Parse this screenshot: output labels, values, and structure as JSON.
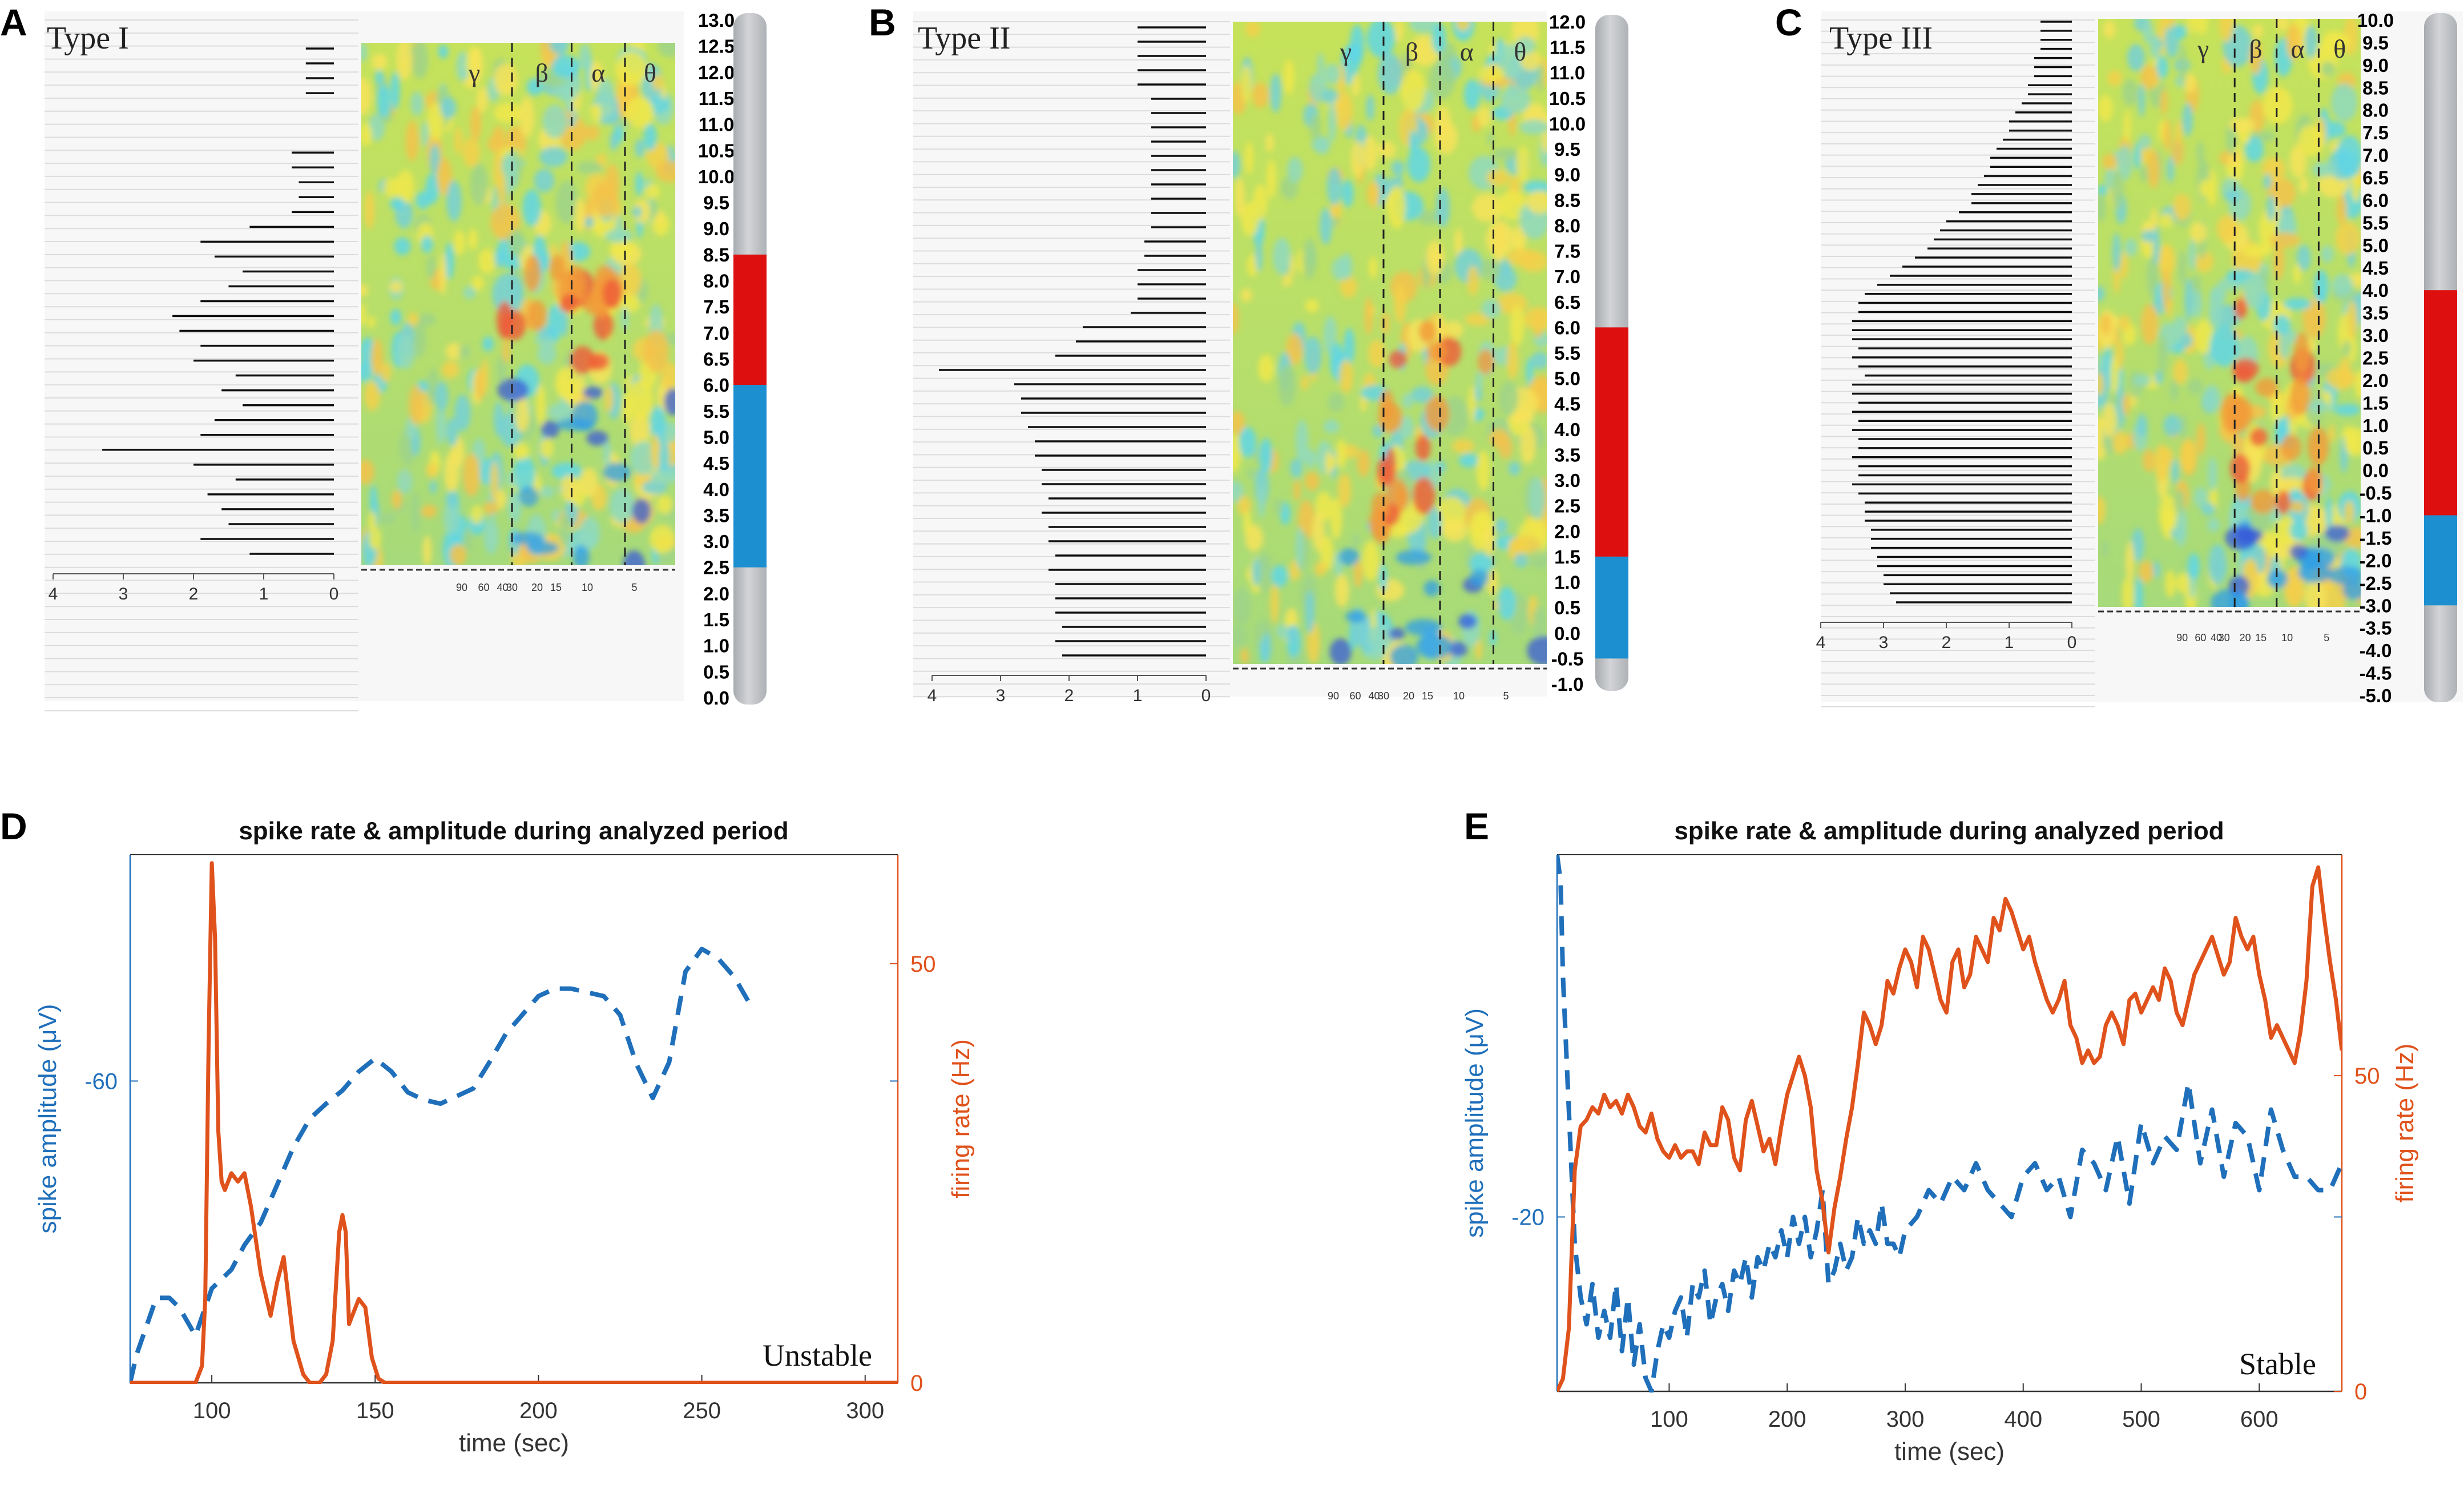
{
  "figure": {
    "panel_labels": [
      "A",
      "B",
      "C",
      "D",
      "E"
    ],
    "colors": {
      "amplitude": "#1f6fba",
      "firing": "#e0521c",
      "band_red": "#dd0f0f",
      "band_blue": "#1b8fd0",
      "bar_gray": "#c7c9cc"
    }
  },
  "chart_data": [
    {
      "panel": "A",
      "type": "heatmap",
      "title": "Type I",
      "band_labels": [
        "γ",
        "β",
        "α",
        "θ"
      ],
      "freq_ticks": [
        "90",
        "60",
        "40",
        "30",
        "20",
        "15",
        "10",
        "5"
      ],
      "bar_axis_ticks": [
        "4",
        "3",
        "2",
        "1",
        "0"
      ],
      "depth_labels": [
        "13.0",
        "12.5",
        "12.0",
        "11.5",
        "11.0",
        "10.5",
        "10.0",
        "9.5",
        "9.0",
        "8.5",
        "8.0",
        "7.5",
        "7.0",
        "6.5",
        "6.0",
        "5.5",
        "5.0",
        "4.5",
        "4.0",
        "3.5",
        "3.0",
        "2.5",
        "2.0",
        "1.5",
        "1.0",
        "0.5",
        "0.0"
      ],
      "depth_range": [
        0.0,
        13.0
      ],
      "red_zone": [
        6.0,
        8.5
      ],
      "blue_zone": [
        2.5,
        6.0
      ],
      "bar_values": [
        0.4,
        0.4,
        0.4,
        0.4,
        0,
        0,
        0,
        0.6,
        0.6,
        0.5,
        0.5,
        0.6,
        1.2,
        1.9,
        1.7,
        1.3,
        1.5,
        1.9,
        2.3,
        2.2,
        1.9,
        2.0,
        1.4,
        1.6,
        1.3,
        1.7,
        1.9,
        3.3,
        2.0,
        1.4,
        1.8,
        1.6,
        1.5,
        1.9,
        1.2
      ]
    },
    {
      "panel": "B",
      "type": "heatmap",
      "title": "Type II",
      "band_labels": [
        "γ",
        "β",
        "α",
        "θ"
      ],
      "freq_ticks": [
        "90",
        "60",
        "40",
        "30",
        "20",
        "15",
        "10",
        "5"
      ],
      "bar_axis_ticks": [
        "4",
        "3",
        "2",
        "1",
        "0"
      ],
      "depth_labels": [
        "12.0",
        "11.5",
        "11.0",
        "10.5",
        "10.0",
        "9.5",
        "9.0",
        "8.5",
        "8.0",
        "7.5",
        "7.0",
        "6.5",
        "6.0",
        "5.5",
        "5.0",
        "4.5",
        "4.0",
        "3.5",
        "3.0",
        "2.5",
        "2.0",
        "1.5",
        "1.0",
        "0.5",
        "0.0",
        "-0.5",
        "-1.0"
      ],
      "depth_range": [
        -1.0,
        12.0
      ],
      "red_zone": [
        1.5,
        6.0
      ],
      "blue_zone": [
        -0.5,
        1.5
      ],
      "bar_values": [
        1.0,
        1.0,
        1.0,
        1.0,
        1.0,
        0.8,
        0.8,
        0.8,
        0.8,
        0.8,
        0.8,
        0.8,
        0.8,
        0.8,
        0.8,
        0.9,
        0.9,
        1.0,
        1.0,
        1.0,
        1.1,
        1.8,
        1.9,
        2.2,
        3.9,
        2.8,
        2.7,
        2.7,
        2.6,
        2.5,
        2.5,
        2.4,
        2.4,
        2.3,
        2.4,
        2.3,
        2.3,
        2.2,
        2.3,
        2.2,
        2.2,
        2.2,
        2.1,
        2.2,
        2.1
      ]
    },
    {
      "panel": "C",
      "type": "heatmap",
      "title": "Type III",
      "band_labels": [
        "γ",
        "β",
        "α",
        "θ"
      ],
      "freq_ticks": [
        "90",
        "60",
        "40",
        "30",
        "20",
        "15",
        "10",
        "5"
      ],
      "bar_axis_ticks": [
        "4",
        "3",
        "2",
        "1",
        "0"
      ],
      "depth_labels": [
        "10.0",
        "9.5",
        "9.0",
        "8.5",
        "8.0",
        "7.5",
        "7.0",
        "6.5",
        "6.0",
        "5.5",
        "5.0",
        "4.5",
        "4.0",
        "3.5",
        "3.0",
        "2.5",
        "2.0",
        "1.5",
        "1.0",
        "0.5",
        "0.0",
        "-0.5",
        "-1.0",
        "-1.5",
        "-2.0",
        "-2.5",
        "-3.0",
        "-3.5",
        "-4.0",
        "-4.5",
        "-5.0"
      ],
      "depth_range": [
        -5.0,
        10.0
      ],
      "red_zone": [
        -1.0,
        4.0
      ],
      "blue_zone": [
        -3.0,
        -1.0
      ],
      "bar_values": [
        0.5,
        0.5,
        0.5,
        0.5,
        0.6,
        0.6,
        0.6,
        0.7,
        0.7,
        0.8,
        0.9,
        1.0,
        1.0,
        1.1,
        1.2,
        1.3,
        1.3,
        1.4,
        1.5,
        1.6,
        1.6,
        1.8,
        2.0,
        2.1,
        2.2,
        2.3,
        2.5,
        2.7,
        2.9,
        3.1,
        3.3,
        3.4,
        3.4,
        3.5,
        3.5,
        3.5,
        3.4,
        3.5,
        3.4,
        3.3,
        3.5,
        3.5,
        3.4,
        3.5,
        3.4,
        3.5,
        3.4,
        3.4,
        3.5,
        3.4,
        3.4,
        3.5,
        3.4,
        3.3,
        3.3,
        3.3,
        3.2,
        3.2,
        3.2,
        3.1,
        3.1,
        3.0,
        3.0,
        2.9,
        2.8
      ]
    },
    {
      "panel": "D",
      "type": "line",
      "title": "spike rate & amplitude during analyzed period",
      "xlabel": "time (sec)",
      "ylabel_left": "spike amplitude (μV)",
      "ylabel_right": "firing rate (Hz)",
      "xlim": [
        75,
        310
      ],
      "xticks": [
        "100",
        "150",
        "200",
        "250",
        "300"
      ],
      "ylim_left": [
        -76,
        -48
      ],
      "yticks_left": [
        "-60"
      ],
      "ylim_right": [
        0,
        63
      ],
      "yticks_right": [
        "0",
        "50"
      ],
      "annotation": "Unstable",
      "series": [
        {
          "name": "spike amplitude",
          "axis": "left",
          "style": "dashed",
          "x": [
            75,
            77,
            80,
            83,
            87,
            90,
            95,
            98,
            100,
            103,
            106,
            110,
            115,
            120,
            125,
            130,
            135,
            140,
            145,
            150,
            155,
            160,
            165,
            170,
            175,
            180,
            185,
            190,
            195,
            200,
            205,
            210,
            215,
            220,
            225,
            230,
            235,
            240,
            245,
            250,
            255,
            260,
            265
          ],
          "y": [
            -76,
            -74.5,
            -73,
            -71.5,
            -71.5,
            -72,
            -73.5,
            -72,
            -71,
            -70.5,
            -70,
            -68.7,
            -67.5,
            -65.5,
            -63.5,
            -62,
            -61.2,
            -60.5,
            -59.5,
            -58.8,
            -59.5,
            -60.6,
            -61,
            -61.2,
            -60.8,
            -60.4,
            -59,
            -57.5,
            -56.5,
            -55.5,
            -55.1,
            -55.1,
            -55.3,
            -55.5,
            -56.5,
            -59.1,
            -60.9,
            -59,
            -54.2,
            -53,
            -53.5,
            -54.5,
            -56
          ]
        },
        {
          "name": "firing rate",
          "axis": "right",
          "style": "solid",
          "x": [
            75,
            95,
            97,
            98,
            99,
            100,
            101,
            102,
            103,
            104,
            106,
            108,
            110,
            112,
            115,
            118,
            120,
            122,
            125,
            128,
            130,
            133,
            135,
            137,
            139,
            140,
            141,
            142,
            143,
            145,
            147,
            149,
            151,
            153,
            155,
            160,
            310
          ],
          "y": [
            0,
            0,
            2,
            10,
            40,
            62,
            53,
            30,
            24,
            23,
            25,
            24,
            25,
            21,
            13,
            8,
            12,
            15,
            5,
            1,
            0,
            0,
            1,
            5,
            18,
            20,
            18,
            7,
            8,
            10,
            9,
            3,
            0.5,
            0,
            0,
            0,
            0
          ]
        }
      ]
    },
    {
      "panel": "E",
      "type": "line",
      "title": "spike rate & amplitude during analyzed period",
      "xlabel": "time (sec)",
      "ylabel_left": "spike amplitude (μV)",
      "ylabel_right": "firing rate (Hz)",
      "xlim": [
        5,
        670
      ],
      "xticks": [
        "100",
        "200",
        "300",
        "400",
        "500",
        "600"
      ],
      "ylim_left": [
        -33,
        7
      ],
      "yticks_left": [
        "-20"
      ],
      "ylim_right": [
        0,
        85
      ],
      "yticks_right": [
        "0",
        "50"
      ],
      "annotation": "Stable",
      "series": [
        {
          "name": "spike amplitude",
          "axis": "left",
          "style": "dashed",
          "x": [
            5,
            8,
            10,
            13,
            16,
            20,
            25,
            30,
            35,
            40,
            45,
            50,
            55,
            60,
            65,
            70,
            75,
            80,
            85,
            90,
            95,
            100,
            105,
            110,
            115,
            120,
            125,
            130,
            135,
            140,
            145,
            150,
            155,
            160,
            165,
            170,
            175,
            180,
            185,
            190,
            195,
            200,
            205,
            210,
            215,
            220,
            225,
            230,
            235,
            240,
            245,
            250,
            255,
            260,
            265,
            270,
            275,
            280,
            285,
            290,
            295,
            300,
            310,
            320,
            330,
            340,
            350,
            360,
            370,
            380,
            390,
            400,
            410,
            420,
            430,
            440,
            450,
            460,
            470,
            480,
            490,
            500,
            510,
            520,
            530,
            540,
            550,
            560,
            570,
            580,
            590,
            600,
            610,
            620,
            630,
            640,
            650,
            660,
            670
          ],
          "y": [
            7,
            5,
            -2,
            -8,
            -14,
            -22,
            -26,
            -28,
            -25,
            -29,
            -27,
            -29,
            -25,
            -30,
            -26,
            -31,
            -28,
            -32,
            -33,
            -30,
            -28,
            -29,
            -27,
            -26,
            -29,
            -25,
            -26,
            -24,
            -28,
            -26,
            -25,
            -27,
            -24,
            -25,
            -23,
            -26,
            -23,
            -24,
            -22,
            -23,
            -21,
            -23,
            -20,
            -22,
            -20,
            -23,
            -21,
            -18,
            -25,
            -24,
            -22,
            -24,
            -23,
            -20,
            -22,
            -21,
            -22,
            -19,
            -22,
            -22,
            -23,
            -21,
            -20,
            -18,
            -19,
            -17,
            -18,
            -16,
            -18,
            -19,
            -20,
            -17,
            -16,
            -18,
            -17,
            -20,
            -15,
            -16,
            -18,
            -14,
            -19,
            -13,
            -16,
            -14,
            -15,
            -10,
            -16,
            -12,
            -17,
            -13,
            -14,
            -18,
            -12,
            -15,
            -17,
            -17,
            -18,
            -18,
            -16
          ]
        },
        {
          "name": "firing rate",
          "axis": "right",
          "style": "solid",
          "x": [
            5,
            10,
            15,
            20,
            25,
            30,
            35,
            40,
            45,
            50,
            55,
            60,
            65,
            70,
            75,
            80,
            85,
            90,
            95,
            100,
            105,
            110,
            115,
            120,
            125,
            130,
            135,
            140,
            145,
            150,
            155,
            160,
            165,
            170,
            175,
            180,
            185,
            190,
            195,
            200,
            205,
            210,
            215,
            220,
            225,
            230,
            235,
            240,
            245,
            250,
            255,
            260,
            265,
            270,
            275,
            280,
            285,
            290,
            295,
            300,
            305,
            310,
            315,
            320,
            325,
            330,
            335,
            340,
            345,
            350,
            355,
            360,
            365,
            370,
            375,
            380,
            385,
            390,
            395,
            400,
            405,
            410,
            415,
            420,
            425,
            430,
            435,
            440,
            445,
            450,
            455,
            460,
            465,
            470,
            475,
            480,
            485,
            490,
            495,
            500,
            505,
            510,
            515,
            520,
            525,
            530,
            535,
            540,
            545,
            550,
            555,
            560,
            565,
            570,
            575,
            580,
            585,
            590,
            595,
            600,
            605,
            610,
            615,
            620,
            625,
            630,
            635,
            640,
            645,
            650,
            655,
            660,
            665,
            670
          ],
          "y": [
            0,
            2,
            10,
            35,
            42,
            43,
            45,
            44,
            47,
            45,
            46,
            44,
            47,
            45,
            42,
            41,
            44,
            40,
            38,
            37,
            39,
            37,
            38,
            38,
            36,
            41,
            39,
            39,
            45,
            43,
            37,
            35,
            43,
            46,
            42,
            38,
            40,
            36,
            42,
            47,
            50,
            53,
            50,
            45,
            35,
            30,
            22,
            29,
            34,
            40,
            45,
            52,
            60,
            58,
            55,
            58,
            65,
            63,
            67,
            70,
            68,
            64,
            72,
            70,
            66,
            62,
            60,
            68,
            70,
            64,
            66,
            72,
            70,
            68,
            75,
            73,
            78,
            76,
            73,
            70,
            72,
            68,
            65,
            62,
            60,
            62,
            65,
            58,
            56,
            52,
            54,
            52,
            53,
            58,
            60,
            58,
            55,
            62,
            63,
            60,
            62,
            64,
            62,
            67,
            65,
            60,
            58,
            62,
            66,
            68,
            70,
            72,
            69,
            66,
            68,
            75,
            72,
            70,
            72,
            66,
            62,
            56,
            58,
            56,
            54,
            52,
            57,
            65,
            80,
            83,
            75,
            68,
            62,
            54
          ]
        }
      ]
    }
  ]
}
